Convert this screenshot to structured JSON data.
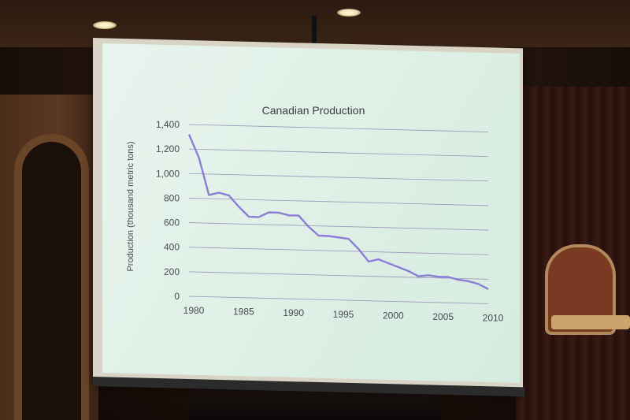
{
  "chart_data": {
    "type": "line",
    "title": "Canadian Production",
    "xlabel": "",
    "ylabel": "Production (thousand metric tons)",
    "xlim": [
      1980,
      2010
    ],
    "ylim": [
      0,
      1400
    ],
    "x_ticks": [
      "1980",
      "1985",
      "1990",
      "1995",
      "2000",
      "2005",
      "2010"
    ],
    "y_ticks": [
      "0",
      "200",
      "400",
      "600",
      "800",
      "1,000",
      "1,200",
      "1,400"
    ],
    "grid": true,
    "legend": "none",
    "series": [
      {
        "x": [
          1980,
          1981,
          1982,
          1983,
          1984,
          1985,
          1986,
          1987,
          1988,
          1989,
          1990,
          1991,
          1992,
          1993,
          1994,
          1995,
          1996,
          1997,
          1998,
          1999,
          2000,
          2001,
          2002,
          2003,
          2004,
          2005,
          2006,
          2007,
          2008,
          2009,
          2010
        ],
        "values": [
          1320,
          1130,
          830,
          850,
          830,
          740,
          660,
          660,
          700,
          700,
          680,
          680,
          590,
          520,
          520,
          510,
          500,
          420,
          320,
          340,
          310,
          280,
          250,
          210,
          220,
          210,
          210,
          190,
          180,
          160,
          120
        ]
      }
    ],
    "colors": {
      "line": "#8a7fd6",
      "grid": "#9a94b6",
      "text": "#4a4a55"
    }
  }
}
